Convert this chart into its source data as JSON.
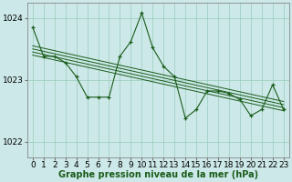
{
  "bg_color": "#cce8e8",
  "plot_bg_color": "#cce8e8",
  "grid_color": "#99ccbb",
  "line_color": "#1a5c1a",
  "ylim": [
    1021.75,
    1024.25
  ],
  "xlim": [
    -0.5,
    23.5
  ],
  "yticks": [
    1022,
    1023,
    1024
  ],
  "xticks": [
    0,
    1,
    2,
    3,
    4,
    5,
    6,
    7,
    8,
    9,
    10,
    11,
    12,
    13,
    14,
    15,
    16,
    17,
    18,
    19,
    20,
    21,
    22,
    23
  ],
  "xlabel": "Graphe pression niveau de la mer (hPa)",
  "xlabel_fontsize": 7,
  "tick_fontsize": 6.5,
  "linear_lines": [
    {
      "x0": 0,
      "y0": 1023.55,
      "x1": 23,
      "y1": 1022.65
    },
    {
      "x0": 0,
      "y0": 1023.5,
      "x1": 23,
      "y1": 1022.6
    },
    {
      "x0": 0,
      "y0": 1023.45,
      "x1": 23,
      "y1": 1022.55
    },
    {
      "x0": 0,
      "y0": 1023.4,
      "x1": 23,
      "y1": 1022.5
    }
  ],
  "main_series_x": [
    0,
    1,
    2,
    3,
    4,
    5,
    6,
    7,
    8,
    9,
    10,
    11,
    12,
    13,
    14,
    15,
    16,
    17,
    18,
    19,
    20,
    21,
    22,
    23
  ],
  "main_series_y": [
    1023.85,
    1023.38,
    1023.38,
    1023.28,
    1023.05,
    1022.72,
    1022.72,
    1022.72,
    1023.38,
    1023.62,
    1024.08,
    1023.52,
    1023.22,
    1023.05,
    1022.38,
    1022.52,
    1022.82,
    1022.82,
    1022.78,
    1022.68,
    1022.42,
    1022.52,
    1022.92,
    1022.52
  ]
}
